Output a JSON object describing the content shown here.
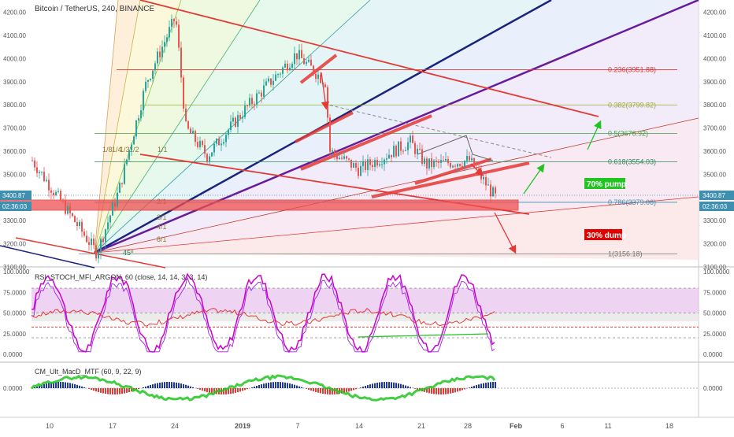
{
  "header": {
    "title": "Bitcoin / TetherUS, 240, BINANCE"
  },
  "indicators": {
    "rsi_title": "RSI_STOCH_MFI_ARGON_60 (close, 14, 14, 3, 3, 14)",
    "macd_title": "CM_Ult_MacD_MTF (60, 9, 22, 9)"
  },
  "price_axis": {
    "ticks": [
      "4200.00",
      "4100.00",
      "4000.00",
      "3900.00",
      "3800.00",
      "3700.00",
      "3600.00",
      "3500.00",
      "3300.00",
      "3200.00",
      "3100.00"
    ],
    "tick_values": [
      4200,
      4100,
      4000,
      3900,
      3800,
      3700,
      3600,
      3500,
      3300,
      3200,
      3100
    ],
    "last_price": "3400.87",
    "countdown": "02:36:03"
  },
  "rsi_axis": {
    "ticks": [
      "100.0000",
      "75.0000",
      "50.0000",
      "25.0000",
      "0.0000"
    ],
    "tick_values": [
      100,
      75,
      50,
      25,
      0
    ]
  },
  "macd_axis": {
    "ticks": [
      "0.0000"
    ]
  },
  "time_axis": {
    "ticks": [
      "10",
      "17",
      "24",
      "2019",
      "7",
      "14",
      "21",
      "28",
      "Feb",
      "6",
      "11",
      "18"
    ]
  },
  "fib_levels": [
    {
      "label": "0.236(3951.88)",
      "value": 3951.88,
      "color": "#e53935"
    },
    {
      "label": "0.382(3799.82)",
      "value": 3799.82,
      "color": "#9aae3a"
    },
    {
      "label": "0.5(3676.92)",
      "value": 3676.92,
      "color": "#43a047"
    },
    {
      "label": "0.618(3554.03)",
      "value": 3554.03,
      "color": "#2e8b57"
    },
    {
      "label": "0.786(3379.06)",
      "value": 3379.06,
      "color": "#3f8fb0"
    },
    {
      "label": "1(3156.18)",
      "value": 3156.18,
      "color": "#777777"
    }
  ],
  "gann_labels": [
    "1/8",
    "1/4",
    "1/3",
    "1/2",
    "1/1",
    "2/1",
    "3/1",
    "4/1",
    "8/1",
    "45º"
  ],
  "annotations": {
    "pump": "70% pump",
    "dump": "30% dump"
  },
  "colors": {
    "up": "#26a69a",
    "down": "#ef5350",
    "zone": "#f05050",
    "stoch": "#cc00cc",
    "rsi_line": "#e53935"
  },
  "chart_data": {
    "type": "candlestick",
    "title": "Bitcoin / TetherUS, 240, BINANCE",
    "ylim": [
      3100,
      4230
    ],
    "y_scale": "linear",
    "x_ticks": [
      "10",
      "17",
      "24",
      "2019",
      "7",
      "14",
      "21",
      "28",
      "Feb",
      "6",
      "11",
      "18"
    ],
    "last_price": 3400.87,
    "approx_close_path": [
      {
        "x": "10",
        "y": 3560
      },
      {
        "x": "14",
        "y": 3160
      },
      {
        "x": "17",
        "y": 3420
      },
      {
        "x": "20",
        "y": 3900
      },
      {
        "x": "24",
        "y": 4180
      },
      {
        "x": "25",
        "y": 3700
      },
      {
        "x": "27",
        "y": 3580
      },
      {
        "x": "2019",
        "y": 3800
      },
      {
        "x": "7",
        "y": 4020
      },
      {
        "x": "10",
        "y": 3600
      },
      {
        "x": "14",
        "y": 3570
      },
      {
        "x": "18",
        "y": 3600
      },
      {
        "x": "21",
        "y": 3540
      },
      {
        "x": "26",
        "y": 3560
      },
      {
        "x": "28",
        "y": 3400
      }
    ],
    "rsi_panel": {
      "ylim": [
        0,
        100
      ],
      "levels": [
        80,
        50,
        20
      ]
    }
  }
}
